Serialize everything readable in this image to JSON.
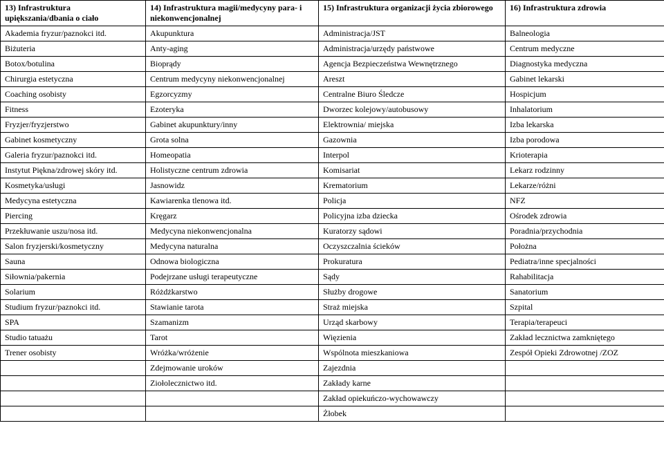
{
  "table": {
    "headers": [
      "13) Infrastruktura upiększania/dbania o ciało",
      "14) Infrastruktura magii/medycyny para- i niekonwencjonalnej",
      "15) Infrastruktura organizacji życia zbiorowego",
      "16) Infrastruktura  zdrowia"
    ],
    "rows": [
      [
        "Akademia fryzur/paznokci itd.",
        "Akupunktura",
        "Administracja/JST",
        "Balneologia"
      ],
      [
        "Biżuteria",
        "Anty-aging",
        "Administracja/urzędy państwowe",
        "Centrum medyczne"
      ],
      [
        "Botox/botulina",
        "Bioprądy",
        "Agencja Bezpieczeństwa Wewnętrznego",
        "Diagnostyka medyczna"
      ],
      [
        "Chirurgia estetyczna",
        "Centrum medycyny niekonwencjonalnej",
        "Areszt",
        "Gabinet lekarski"
      ],
      [
        "Coaching osobisty",
        "Egzorcyzmy",
        "Centralne Biuro Śledcze",
        "Hospicjum"
      ],
      [
        "Fitness",
        "Ezoteryka",
        "Dworzec kolejowy/autobusowy",
        "Inhalatorium"
      ],
      [
        "Fryzjer/fryzjerstwo",
        "Gabinet akupunktury/inny",
        "Elektrownia/  miejska",
        "Izba lekarska"
      ],
      [
        "Gabinet kosmetyczny",
        "Grota solna",
        "Gazownia",
        "Izba porodowa"
      ],
      [
        "Galeria fryzur/paznokci itd.",
        "Homeopatia",
        "Interpol",
        "Krioterapia"
      ],
      [
        "Instytut Piękna/zdrowej skóry itd.",
        "Holistyczne centrum zdrowia",
        "Komisariat",
        "Lekarz rodzinny"
      ],
      [
        "Kosmetyka/usługi",
        "Jasnowidz",
        "Krematorium",
        "Lekarze/różni"
      ],
      [
        "Medycyna estetyczna",
        "Kawiarenka tlenowa itd.",
        "Policja",
        "NFZ"
      ],
      [
        "Piercing",
        "Kręgarz",
        "Policyjna izba dziecka",
        "Ośrodek zdrowia"
      ],
      [
        "Przekłuwanie uszu/nosa itd.",
        "Medycyna niekonwencjonalna",
        "Kuratorzy sądowi",
        "Poradnia/przychodnia"
      ],
      [
        "Salon fryzjerski/kosmetyczny",
        "Medycyna naturalna",
        "Oczyszczalnia ścieków",
        "Położna"
      ],
      [
        "Sauna",
        "Odnowa biologiczna",
        "Prokuratura",
        "Pediatra/inne specjalności"
      ],
      [
        "Siłownia/pakernia",
        "Podejrzane usługi terapeutyczne",
        "Sądy",
        "Rahabilitacja"
      ],
      [
        "Solarium",
        "Różdżkarstwo",
        "Służby drogowe",
        "Sanatorium"
      ],
      [
        "Studium fryzur/paznokci itd.",
        "Stawianie tarota",
        "Straż miejska",
        "Szpital"
      ],
      [
        "SPA",
        "Szamanizm",
        "Urząd skarbowy",
        "Terapia/terapeuci"
      ],
      [
        "Studio tatuażu",
        "Tarot",
        "Więzienia",
        "Zakład lecznictwa zamkniętego"
      ],
      [
        "Trener osobisty",
        "Wróżka/wróżenie",
        "Wspólnota mieszkaniowa",
        "Zespół Opieki Zdrowotnej /ZOZ"
      ],
      [
        "",
        "Zdejmowanie uroków",
        "Zajezdnia",
        ""
      ],
      [
        "",
        "Ziołolecznictwo itd.",
        "Zakłady karne",
        ""
      ],
      [
        "",
        "",
        "Zakład opiekuńczo-wychowawczy",
        ""
      ],
      [
        "",
        "",
        "Żłobek",
        ""
      ]
    ]
  }
}
